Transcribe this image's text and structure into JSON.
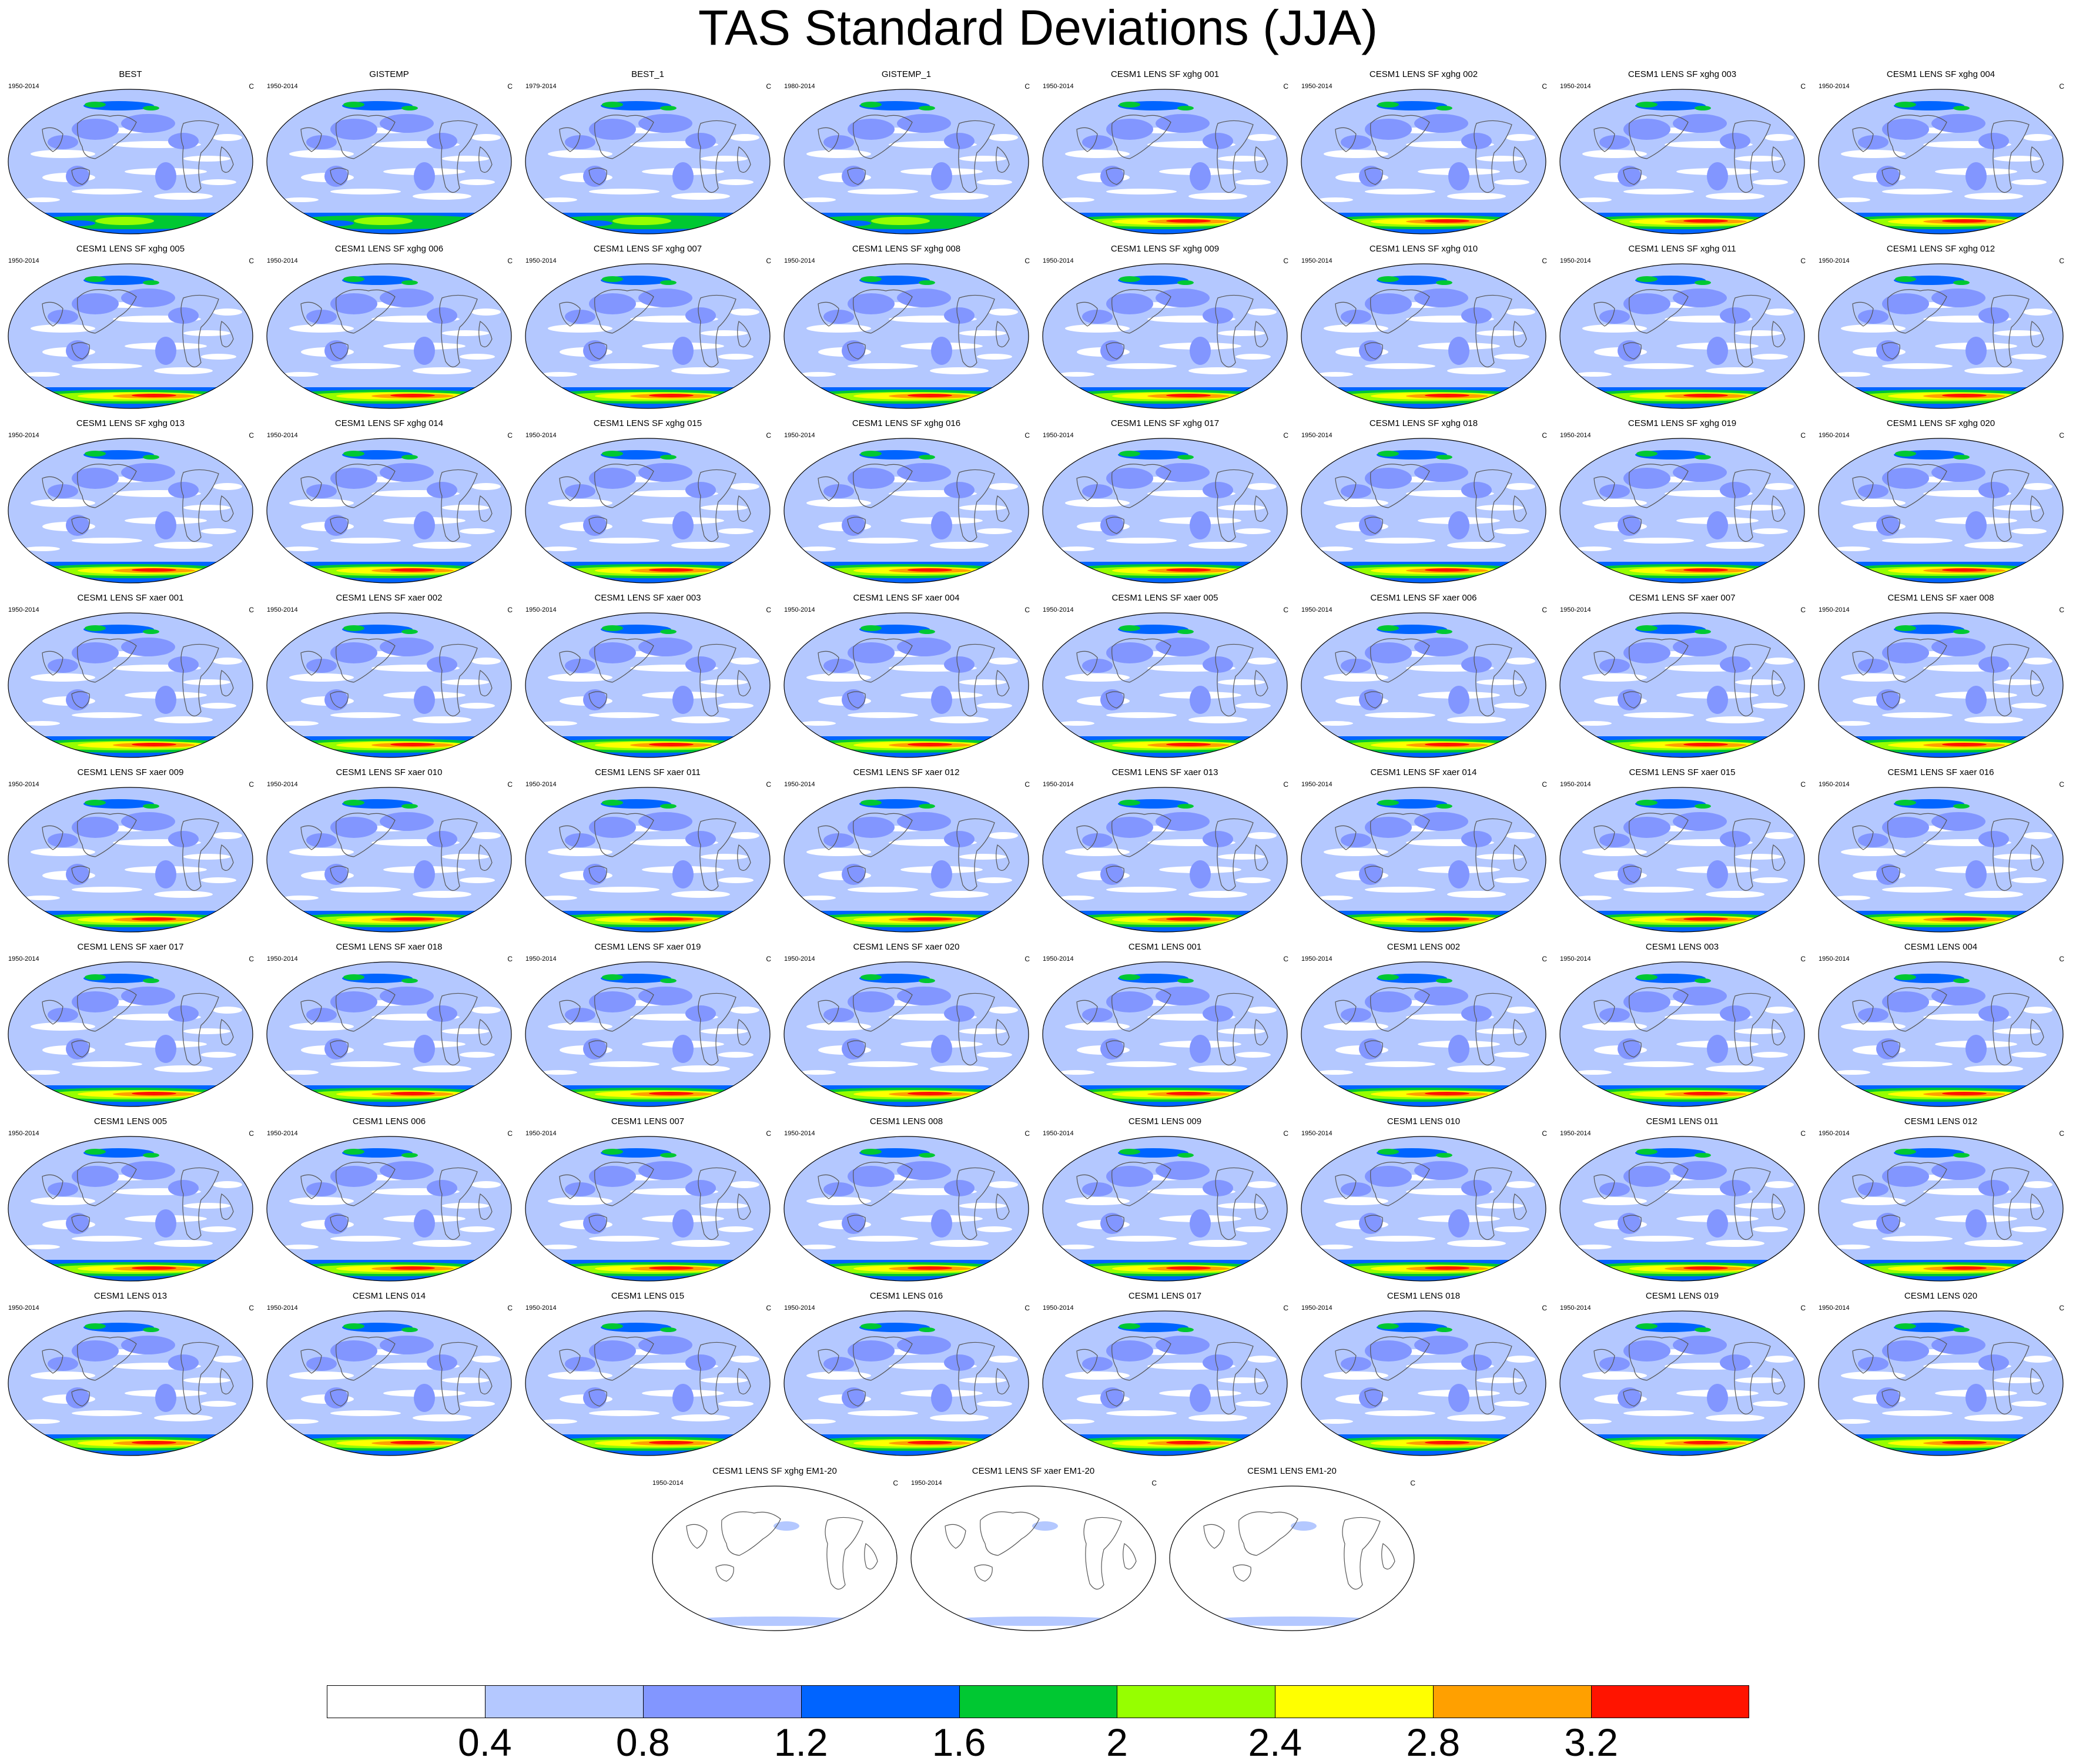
{
  "title": "TAS Standard Deviations (JJA)",
  "colors": {
    "levels": [
      "#ffffff",
      "#b4c8ff",
      "#8296ff",
      "#0064ff",
      "#00c832",
      "#96ff00",
      "#ffff00",
      "#ffa000",
      "#ff1400"
    ],
    "coast": "#555555"
  },
  "chart_data": {
    "type": "heatmap",
    "title": "TAS Standard Deviations (JJA)",
    "colorbar": {
      "ticks": [
        "0.4",
        "0.8",
        "1.2",
        "1.6",
        "2",
        "2.4",
        "2.8",
        "3.2"
      ],
      "levels": [
        0.4,
        0.8,
        1.2,
        1.6,
        2.0,
        2.4,
        2.8,
        3.2
      ]
    },
    "panels": [
      {
        "title": "BEST",
        "period": "1950-2014",
        "units": "C",
        "kind": "obs"
      },
      {
        "title": "GISTEMP",
        "period": "1950-2014",
        "units": "C",
        "kind": "obs"
      },
      {
        "title": "BEST_1",
        "period": "1979-2014",
        "units": "C",
        "kind": "obs"
      },
      {
        "title": "GISTEMP_1",
        "period": "1980-2014",
        "units": "C",
        "kind": "obs"
      },
      {
        "title": "CESM1 LENS SF xghg 001",
        "period": "1950-2014",
        "units": "C",
        "kind": "model"
      },
      {
        "title": "CESM1 LENS SF xghg 002",
        "period": "1950-2014",
        "units": "C",
        "kind": "model"
      },
      {
        "title": "CESM1 LENS SF xghg 003",
        "period": "1950-2014",
        "units": "C",
        "kind": "model"
      },
      {
        "title": "CESM1 LENS SF xghg 004",
        "period": "1950-2014",
        "units": "C",
        "kind": "model"
      },
      {
        "title": "CESM1 LENS SF xghg 005",
        "period": "1950-2014",
        "units": "C",
        "kind": "model"
      },
      {
        "title": "CESM1 LENS SF xghg 006",
        "period": "1950-2014",
        "units": "C",
        "kind": "model"
      },
      {
        "title": "CESM1 LENS SF xghg 007",
        "period": "1950-2014",
        "units": "C",
        "kind": "model"
      },
      {
        "title": "CESM1 LENS SF xghg 008",
        "period": "1950-2014",
        "units": "C",
        "kind": "model"
      },
      {
        "title": "CESM1 LENS SF xghg 009",
        "period": "1950-2014",
        "units": "C",
        "kind": "model"
      },
      {
        "title": "CESM1 LENS SF xghg 010",
        "period": "1950-2014",
        "units": "C",
        "kind": "model"
      },
      {
        "title": "CESM1 LENS SF xghg 011",
        "period": "1950-2014",
        "units": "C",
        "kind": "model"
      },
      {
        "title": "CESM1 LENS SF xghg 012",
        "period": "1950-2014",
        "units": "C",
        "kind": "model"
      },
      {
        "title": "CESM1 LENS SF xghg 013",
        "period": "1950-2014",
        "units": "C",
        "kind": "model"
      },
      {
        "title": "CESM1 LENS SF xghg 014",
        "period": "1950-2014",
        "units": "C",
        "kind": "model"
      },
      {
        "title": "CESM1 LENS SF xghg 015",
        "period": "1950-2014",
        "units": "C",
        "kind": "model"
      },
      {
        "title": "CESM1 LENS SF xghg 016",
        "period": "1950-2014",
        "units": "C",
        "kind": "model"
      },
      {
        "title": "CESM1 LENS SF xghg 017",
        "period": "1950-2014",
        "units": "C",
        "kind": "model"
      },
      {
        "title": "CESM1 LENS SF xghg 018",
        "period": "1950-2014",
        "units": "C",
        "kind": "model"
      },
      {
        "title": "CESM1 LENS SF xghg 019",
        "period": "1950-2014",
        "units": "C",
        "kind": "model"
      },
      {
        "title": "CESM1 LENS SF xghg 020",
        "period": "1950-2014",
        "units": "C",
        "kind": "model"
      },
      {
        "title": "CESM1 LENS SF xaer 001",
        "period": "1950-2014",
        "units": "C",
        "kind": "model"
      },
      {
        "title": "CESM1 LENS SF xaer 002",
        "period": "1950-2014",
        "units": "C",
        "kind": "model"
      },
      {
        "title": "CESM1 LENS SF xaer 003",
        "period": "1950-2014",
        "units": "C",
        "kind": "model"
      },
      {
        "title": "CESM1 LENS SF xaer 004",
        "period": "1950-2014",
        "units": "C",
        "kind": "model"
      },
      {
        "title": "CESM1 LENS SF xaer 005",
        "period": "1950-2014",
        "units": "C",
        "kind": "model"
      },
      {
        "title": "CESM1 LENS SF xaer 006",
        "period": "1950-2014",
        "units": "C",
        "kind": "model"
      },
      {
        "title": "CESM1 LENS SF xaer 007",
        "period": "1950-2014",
        "units": "C",
        "kind": "model"
      },
      {
        "title": "CESM1 LENS SF xaer 008",
        "period": "1950-2014",
        "units": "C",
        "kind": "model"
      },
      {
        "title": "CESM1 LENS SF xaer 009",
        "period": "1950-2014",
        "units": "C",
        "kind": "model"
      },
      {
        "title": "CESM1 LENS SF xaer 010",
        "period": "1950-2014",
        "units": "C",
        "kind": "model"
      },
      {
        "title": "CESM1 LENS SF xaer 011",
        "period": "1950-2014",
        "units": "C",
        "kind": "model"
      },
      {
        "title": "CESM1 LENS SF xaer 012",
        "period": "1950-2014",
        "units": "C",
        "kind": "model"
      },
      {
        "title": "CESM1 LENS SF xaer 013",
        "period": "1950-2014",
        "units": "C",
        "kind": "model"
      },
      {
        "title": "CESM1 LENS SF xaer 014",
        "period": "1950-2014",
        "units": "C",
        "kind": "model"
      },
      {
        "title": "CESM1 LENS SF xaer 015",
        "period": "1950-2014",
        "units": "C",
        "kind": "model"
      },
      {
        "title": "CESM1 LENS SF xaer 016",
        "period": "1950-2014",
        "units": "C",
        "kind": "model"
      },
      {
        "title": "CESM1 LENS SF xaer 017",
        "period": "1950-2014",
        "units": "C",
        "kind": "model"
      },
      {
        "title": "CESM1 LENS SF xaer 018",
        "period": "1950-2014",
        "units": "C",
        "kind": "model"
      },
      {
        "title": "CESM1 LENS SF xaer 019",
        "period": "1950-2014",
        "units": "C",
        "kind": "model"
      },
      {
        "title": "CESM1 LENS SF xaer 020",
        "period": "1950-2014",
        "units": "C",
        "kind": "model"
      },
      {
        "title": "CESM1 LENS 001",
        "period": "1950-2014",
        "units": "C",
        "kind": "model"
      },
      {
        "title": "CESM1 LENS 002",
        "period": "1950-2014",
        "units": "C",
        "kind": "model"
      },
      {
        "title": "CESM1 LENS 003",
        "period": "1950-2014",
        "units": "C",
        "kind": "model"
      },
      {
        "title": "CESM1 LENS 004",
        "period": "1950-2014",
        "units": "C",
        "kind": "model"
      },
      {
        "title": "CESM1 LENS 005",
        "period": "1950-2014",
        "units": "C",
        "kind": "model"
      },
      {
        "title": "CESM1 LENS 006",
        "period": "1950-2014",
        "units": "C",
        "kind": "model"
      },
      {
        "title": "CESM1 LENS 007",
        "period": "1950-2014",
        "units": "C",
        "kind": "model"
      },
      {
        "title": "CESM1 LENS 008",
        "period": "1950-2014",
        "units": "C",
        "kind": "model"
      },
      {
        "title": "CESM1 LENS 009",
        "period": "1950-2014",
        "units": "C",
        "kind": "model"
      },
      {
        "title": "CESM1 LENS 010",
        "period": "1950-2014",
        "units": "C",
        "kind": "model"
      },
      {
        "title": "CESM1 LENS 011",
        "period": "1950-2014",
        "units": "C",
        "kind": "model"
      },
      {
        "title": "CESM1 LENS 012",
        "period": "1950-2014",
        "units": "C",
        "kind": "model"
      },
      {
        "title": "CESM1 LENS 013",
        "period": "1950-2014",
        "units": "C",
        "kind": "model"
      },
      {
        "title": "CESM1 LENS 014",
        "period": "1950-2014",
        "units": "C",
        "kind": "model"
      },
      {
        "title": "CESM1 LENS 015",
        "period": "1950-2014",
        "units": "C",
        "kind": "model"
      },
      {
        "title": "CESM1 LENS 016",
        "period": "1950-2014",
        "units": "C",
        "kind": "model"
      },
      {
        "title": "CESM1 LENS 017",
        "period": "1950-2014",
        "units": "C",
        "kind": "model"
      },
      {
        "title": "CESM1 LENS 018",
        "period": "1950-2014",
        "units": "C",
        "kind": "model"
      },
      {
        "title": "CESM1 LENS 019",
        "period": "1950-2014",
        "units": "C",
        "kind": "model"
      },
      {
        "title": "CESM1 LENS 020",
        "period": "1950-2014",
        "units": "C",
        "kind": "model"
      },
      {
        "title": "CESM1 LENS SF xghg EM1-20",
        "period": "1950-2014",
        "units": "C",
        "kind": "mean"
      },
      {
        "title": "CESM1 LENS SF xaer EM1-20",
        "period": "1950-2014",
        "units": "C",
        "kind": "mean"
      },
      {
        "title": "CESM1 LENS EM1-20",
        "period": "",
        "units": "C",
        "kind": "mean"
      }
    ]
  }
}
